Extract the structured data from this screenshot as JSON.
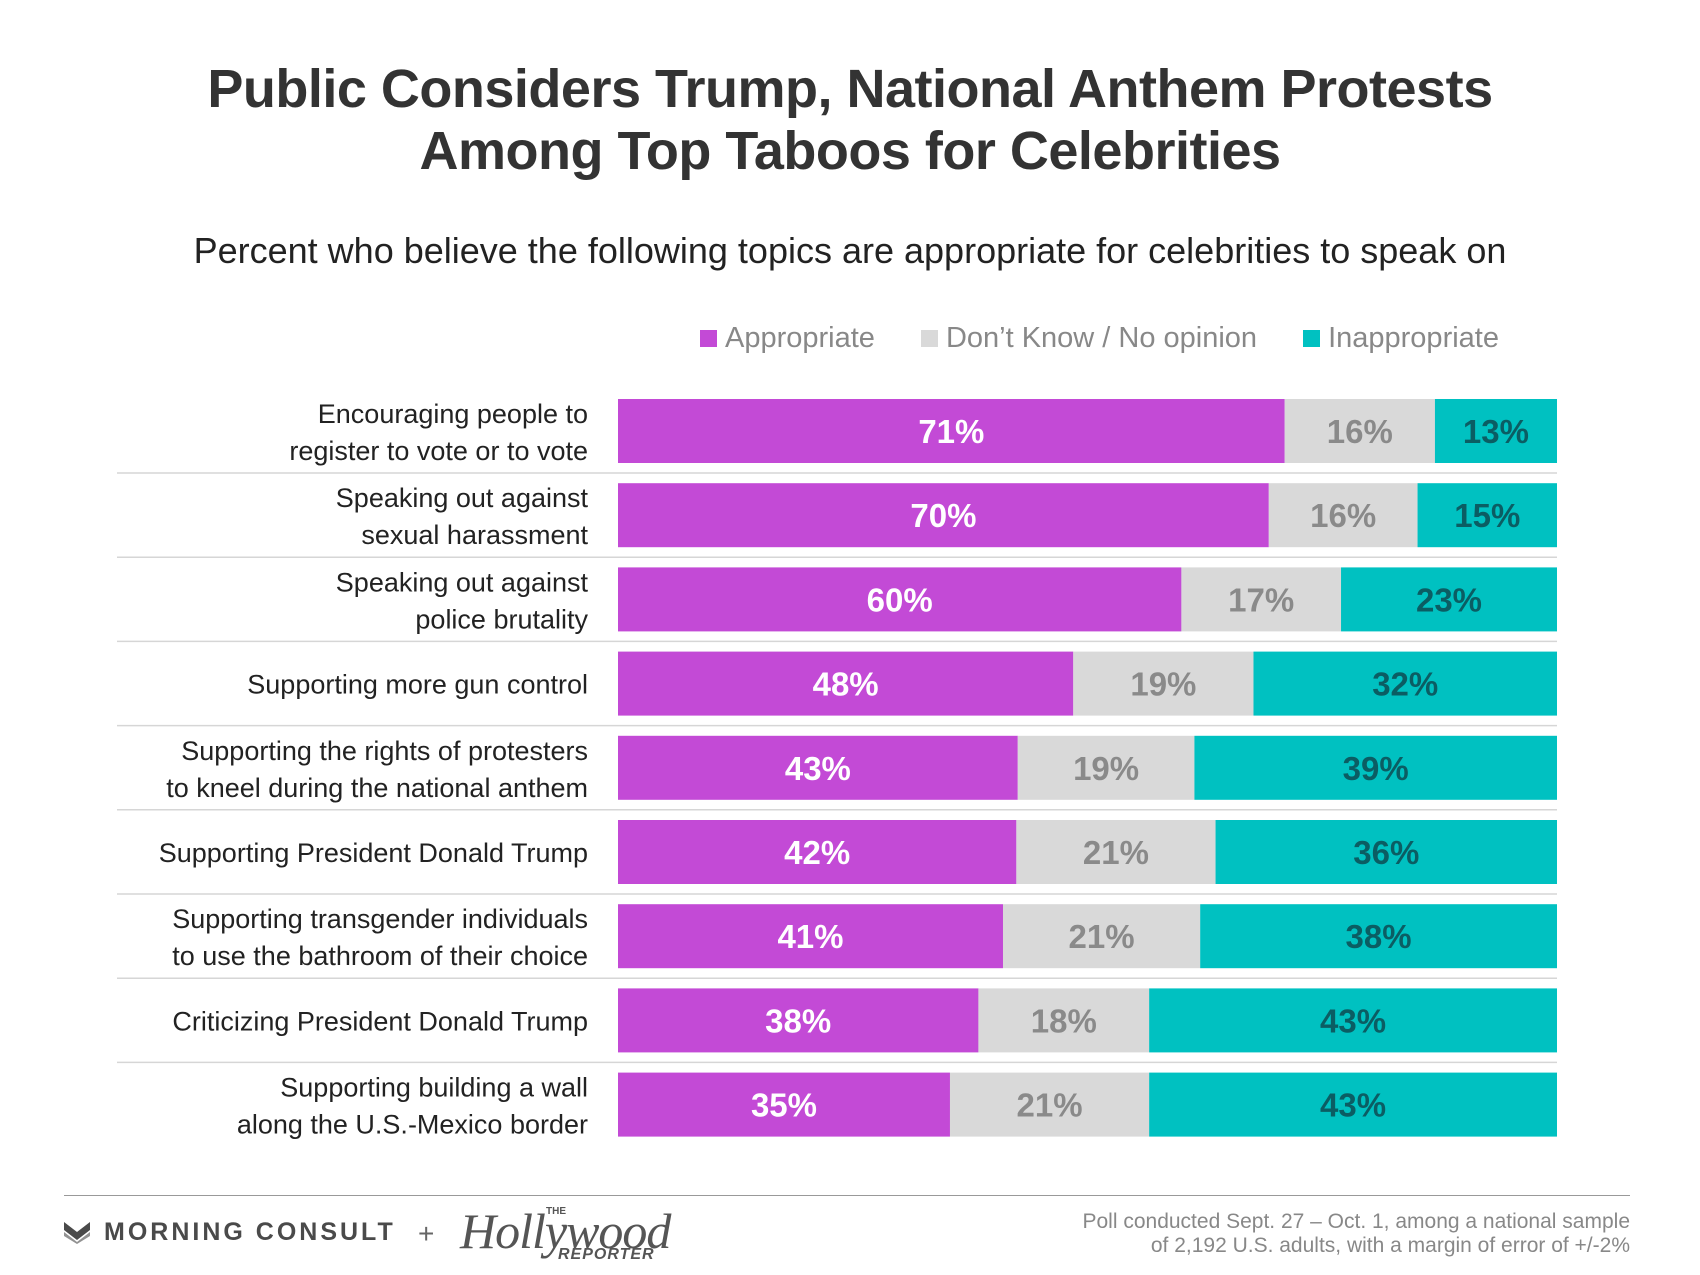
{
  "header": {
    "title_line1": "Public Considers Trump, National Anthem Protests",
    "title_line2": "Among Top Taboos for Celebrities",
    "subtitle": "Percent who believe the following topics are appropriate for celebrities to speak on"
  },
  "colors": {
    "appropriate": "#c34ad6",
    "dont_know": "#d9d9d9",
    "inappropriate": "#00c1c1"
  },
  "chart_data": {
    "type": "bar",
    "orientation": "horizontal",
    "stacked": true,
    "categories": [
      [
        "Encouraging people to",
        "register to vote or to vote"
      ],
      [
        "Speaking out against",
        "sexual harassment"
      ],
      [
        "Speaking out against",
        "police brutality"
      ],
      [
        "Supporting more gun control"
      ],
      [
        "Supporting the rights of protesters",
        "to kneel during the national anthem"
      ],
      [
        "Supporting President Donald Trump"
      ],
      [
        "Supporting transgender individuals",
        "to use the bathroom of their choice"
      ],
      [
        "Criticizing President Donald Trump"
      ],
      [
        "Supporting building a wall",
        "along the U.S.-Mexico border"
      ]
    ],
    "series": [
      {
        "name": "Appropriate",
        "values": [
          71,
          70,
          60,
          48,
          43,
          42,
          41,
          38,
          35
        ]
      },
      {
        "name": "Don't Know / No opinion",
        "values": [
          16,
          16,
          17,
          19,
          19,
          21,
          21,
          18,
          21
        ]
      },
      {
        "name": "Inappropriate",
        "values": [
          13,
          15,
          23,
          32,
          39,
          36,
          38,
          43,
          43
        ]
      }
    ],
    "value_suffix": "%",
    "legend_position": "top"
  },
  "legend": [
    {
      "label": "Appropriate"
    },
    {
      "label": "Don’t Know / No opinion"
    },
    {
      "label": "Inappropriate"
    }
  ],
  "footer": {
    "brand1": "MORNING CONSULT",
    "plus": "+",
    "brand2_small": "THE",
    "brand2_main": "Hollywood",
    "brand2_sub": "REPORTER",
    "source_line1": "Poll conducted Sept. 27 – Oct. 1, among a national sample",
    "source_line2": "of 2,192 U.S. adults, with a margin of error of +/-2%"
  }
}
